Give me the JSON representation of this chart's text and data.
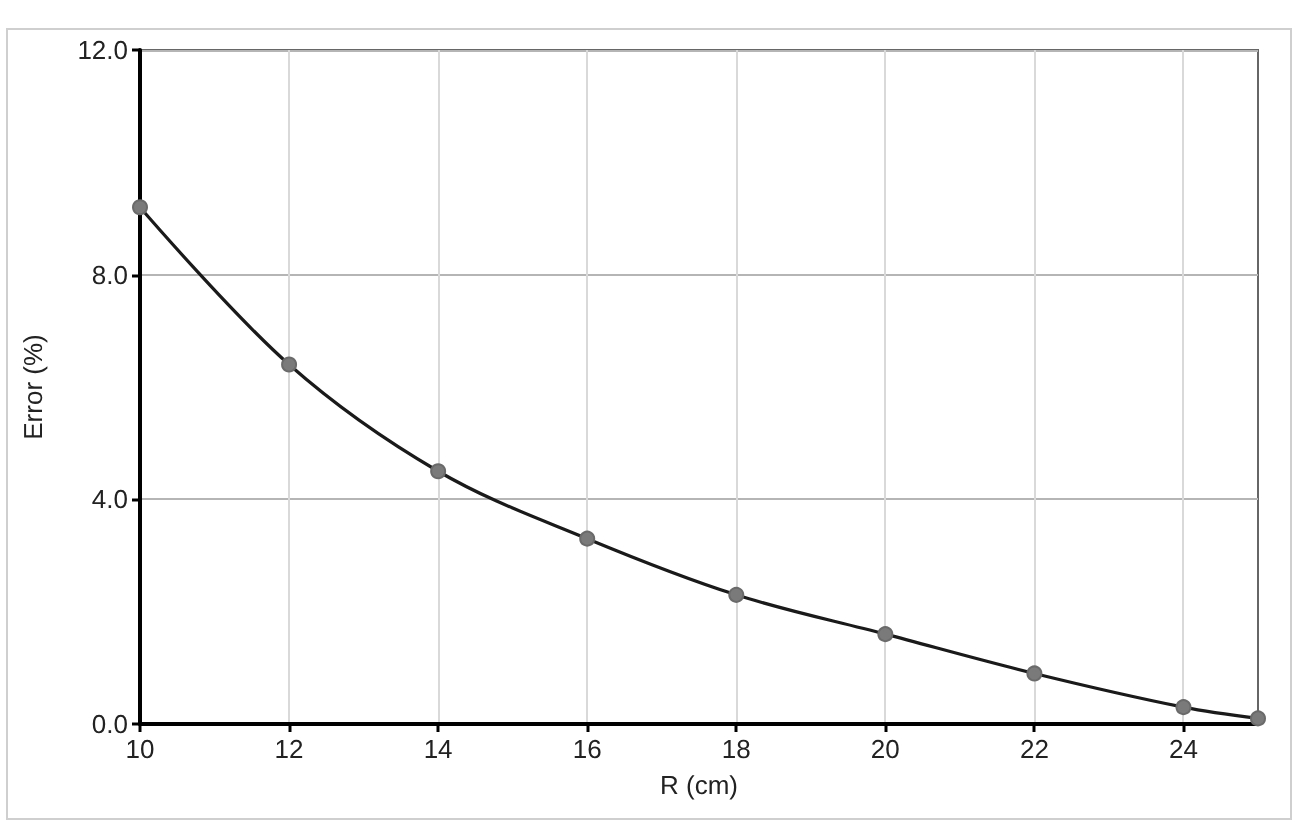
{
  "chart_data": {
    "type": "line",
    "xlabel": "R (cm)",
    "ylabel": "Error (%)",
    "x": [
      10,
      12,
      14,
      16,
      18,
      20,
      22,
      24,
      25
    ],
    "values": [
      9.2,
      6.4,
      4.5,
      3.3,
      2.3,
      1.6,
      0.9,
      0.3,
      0.1
    ],
    "color": "#1a1a1a",
    "marker": "circle",
    "xlim": [
      10,
      25
    ],
    "xticks": [
      10,
      12,
      14,
      16,
      18,
      20,
      22,
      24
    ],
    "ylim": [
      0,
      12
    ],
    "yticks": [
      {
        "value": 0,
        "label": "0.0"
      },
      {
        "value": 4,
        "label": "4.0"
      },
      {
        "value": 8,
        "label": "8.0"
      },
      {
        "value": 12,
        "label": "12.0"
      }
    ],
    "grid": true
  }
}
